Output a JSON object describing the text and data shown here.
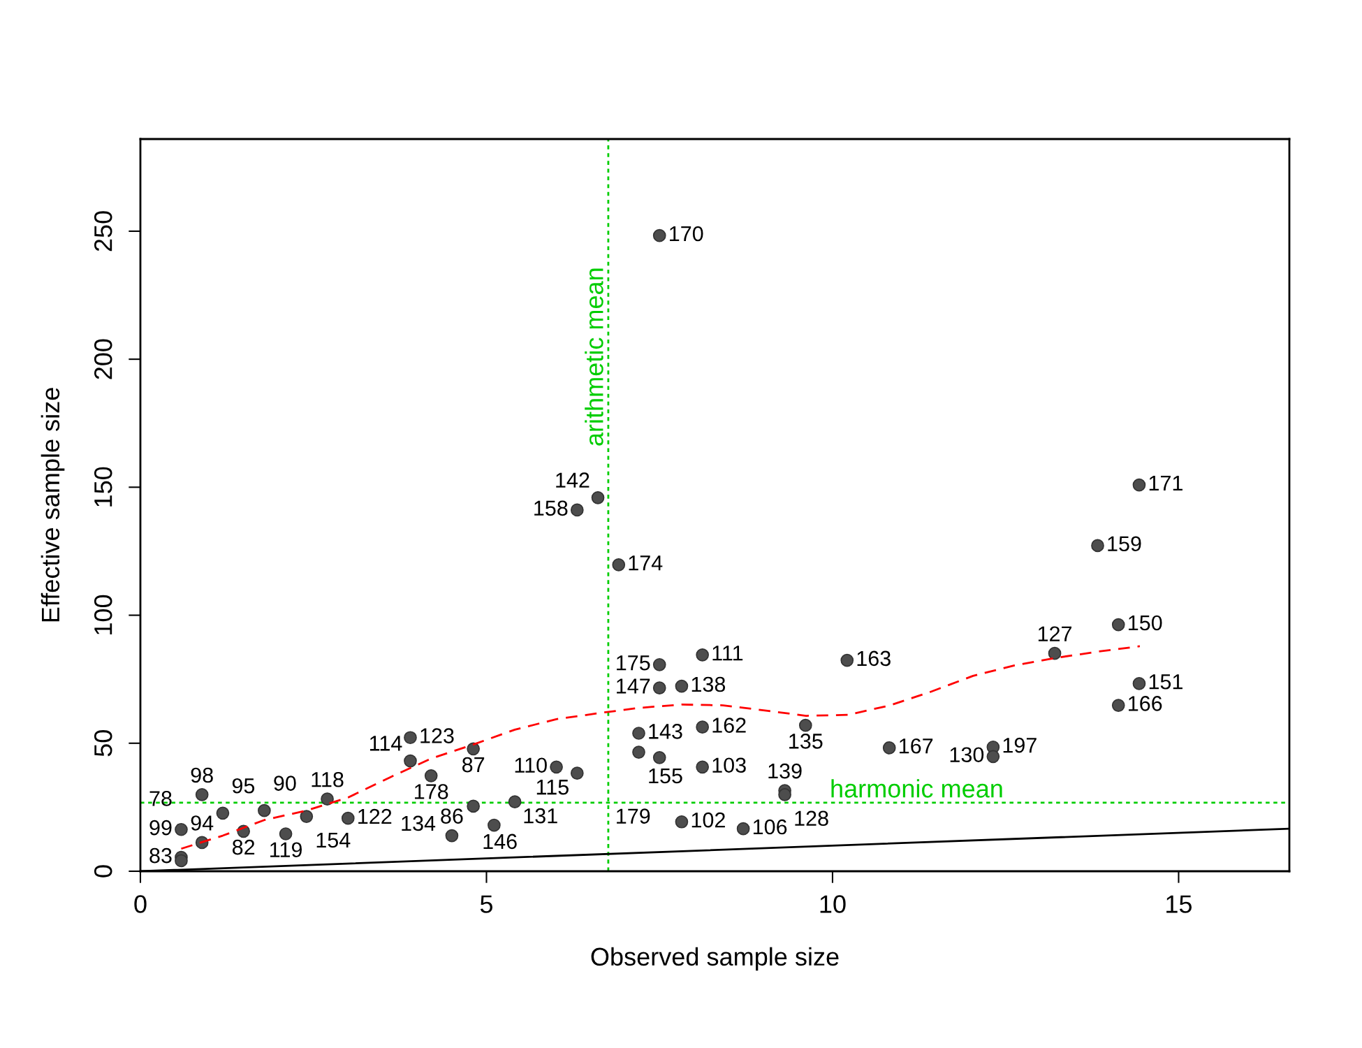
{
  "chart_data": {
    "type": "scatter",
    "xlabel": "Observed sample size",
    "ylabel": "Effective sample size",
    "xlim": [
      0,
      16.6
    ],
    "ylim": [
      0,
      286
    ],
    "xticks": [
      0,
      5,
      10,
      15
    ],
    "yticks": [
      0,
      50,
      100,
      150,
      200,
      250
    ],
    "grid": false,
    "series": [
      {
        "type": "scatter",
        "marker": "circle",
        "color": "#4d4d4d",
        "x": [
          7.5,
          14.43,
          6.61,
          6.31,
          13.83,
          6.91,
          14.13,
          8.12,
          13.21,
          10.21,
          7.5,
          14.43,
          7.5,
          7.82,
          14.13,
          9.61,
          8.12,
          7.2,
          3.9,
          10.82,
          12.32,
          4.81,
          7.2,
          12.32,
          3.9,
          7.5,
          6.01,
          8.12,
          6.31,
          4.2,
          0.89,
          9.31,
          9.31,
          2.7,
          5.41,
          4.81,
          1.79,
          1.19,
          2.4,
          3.0,
          7.82,
          5.11,
          8.71,
          0.59,
          1.49,
          2.1,
          4.5,
          0.89,
          0.59,
          0.59
        ],
        "values": [
          248.3,
          150.9,
          145.9,
          141.1,
          127.2,
          119.7,
          96.3,
          84.5,
          85.1,
          82.4,
          80.7,
          73.3,
          71.6,
          72.3,
          64.8,
          57.0,
          56.3,
          53.9,
          52.2,
          48.2,
          48.5,
          47.8,
          46.5,
          44.8,
          43.1,
          44.4,
          40.7,
          40.7,
          38.3,
          37.3,
          29.9,
          31.5,
          29.9,
          28.2,
          27.1,
          25.4,
          23.7,
          22.7,
          21.4,
          20.7,
          19.3,
          18.0,
          16.6,
          16.3,
          15.6,
          14.6,
          13.9,
          11.2,
          5.4,
          4.1
        ]
      },
      {
        "type": "line",
        "color": "#ff0000",
        "line_style": "dashed",
        "x": [
          0.59,
          1.19,
          1.79,
          2.4,
          3.0,
          3.6,
          4.2,
          4.81,
          5.41,
          6.01,
          6.61,
          7.2,
          7.82,
          8.42,
          9.02,
          9.62,
          10.23,
          10.83,
          11.43,
          12.03,
          12.63,
          13.24,
          13.84,
          14.44
        ],
        "values": [
          8.8,
          13.9,
          20,
          23.7,
          28.8,
          36.6,
          44,
          49.5,
          55.3,
          59.4,
          61.7,
          63.8,
          65.1,
          64.8,
          62.8,
          60.7,
          61.1,
          64.8,
          70.2,
          76.3,
          80.4,
          83.4,
          85.8,
          87.9
        ]
      },
      {
        "type": "line",
        "color": "#000000",
        "line_style": "solid",
        "x": [
          0,
          16.6
        ],
        "values": [
          0,
          16.6
        ]
      }
    ],
    "ref_lines": [
      {
        "axis": "x",
        "value": 6.76,
        "label": "arithmetic mean",
        "color": "#00cd00",
        "line_style": "dotted"
      },
      {
        "axis": "y",
        "value": 26.8,
        "label": "harmonic mean",
        "color": "#00cd00",
        "line_style": "dotted"
      }
    ],
    "annotations": [
      {
        "text": "170",
        "x": 7.5,
        "y": 248.3
      },
      {
        "text": "171",
        "x": 14.43,
        "y": 150.9
      },
      {
        "text": "142",
        "x": 6.61,
        "y": 145.9
      },
      {
        "text": "158",
        "x": 6.31,
        "y": 141.1
      },
      {
        "text": "159",
        "x": 13.83,
        "y": 127.2
      },
      {
        "text": "174",
        "x": 6.91,
        "y": 119.7
      },
      {
        "text": "150",
        "x": 14.13,
        "y": 96.3
      },
      {
        "text": "111",
        "x": 8.12,
        "y": 84.5
      },
      {
        "text": "127",
        "x": 13.21,
        "y": 85.1
      },
      {
        "text": "163",
        "x": 10.21,
        "y": 82.4
      },
      {
        "text": "175",
        "x": 7.5,
        "y": 80.7
      },
      {
        "text": "151",
        "x": 14.43,
        "y": 73.3
      },
      {
        "text": "147",
        "x": 7.5,
        "y": 71.6
      },
      {
        "text": "138",
        "x": 7.82,
        "y": 72.3
      },
      {
        "text": "166",
        "x": 14.13,
        "y": 64.8
      },
      {
        "text": "135",
        "x": 9.61,
        "y": 57.0
      },
      {
        "text": "162",
        "x": 8.12,
        "y": 56.3
      },
      {
        "text": "143",
        "x": 7.2,
        "y": 53.9
      },
      {
        "text": "123",
        "x": 3.9,
        "y": 52.2
      },
      {
        "text": "167",
        "x": 10.82,
        "y": 48.2
      },
      {
        "text": "197",
        "x": 12.32,
        "y": 48.5
      },
      {
        "text": "87",
        "x": 4.81,
        "y": 47.8
      },
      {
        "text": "155",
        "x": 7.2,
        "y": 46.5
      },
      {
        "text": "130",
        "x": 12.32,
        "y": 44.8
      },
      {
        "text": "114",
        "x": 3.9,
        "y": 43.1
      },
      {
        "text": "179",
        "x": 7.5,
        "y": 44.4
      },
      {
        "text": "110",
        "x": 6.01,
        "y": 40.7
      },
      {
        "text": "103",
        "x": 8.12,
        "y": 40.7
      },
      {
        "text": "115",
        "x": 6.31,
        "y": 38.3
      },
      {
        "text": "178",
        "x": 4.2,
        "y": 37.3
      },
      {
        "text": "98",
        "x": 0.89,
        "y": 29.9
      },
      {
        "text": "139",
        "x": 9.31,
        "y": 31.5
      },
      {
        "text": "128",
        "x": 9.31,
        "y": 29.9
      },
      {
        "text": "118",
        "x": 2.7,
        "y": 28.2
      },
      {
        "text": "131",
        "x": 5.41,
        "y": 27.1
      },
      {
        "text": "146",
        "x": 4.81,
        "y": 25.4
      },
      {
        "text": "90",
        "x": 1.79,
        "y": 23.7
      },
      {
        "text": "95",
        "x": 1.19,
        "y": 22.7
      },
      {
        "text": "154",
        "x": 2.4,
        "y": 21.4
      },
      {
        "text": "122",
        "x": 3.0,
        "y": 20.7
      },
      {
        "text": "102",
        "x": 7.82,
        "y": 19.3
      },
      {
        "text": "134",
        "x": 5.11,
        "y": 18.0
      },
      {
        "text": "106",
        "x": 8.71,
        "y": 16.6
      },
      {
        "text": "99",
        "x": 0.59,
        "y": 16.3
      },
      {
        "text": "82",
        "x": 1.49,
        "y": 15.6
      },
      {
        "text": "119",
        "x": 2.1,
        "y": 14.6
      },
      {
        "text": "86",
        "x": 4.5,
        "y": 13.9
      },
      {
        "text": "94",
        "x": 0.89,
        "y": 11.2
      },
      {
        "text": "83",
        "x": 0.59,
        "y": 5.4
      },
      {
        "text": "78",
        "x": 0.59,
        "y": 4.1
      }
    ]
  }
}
